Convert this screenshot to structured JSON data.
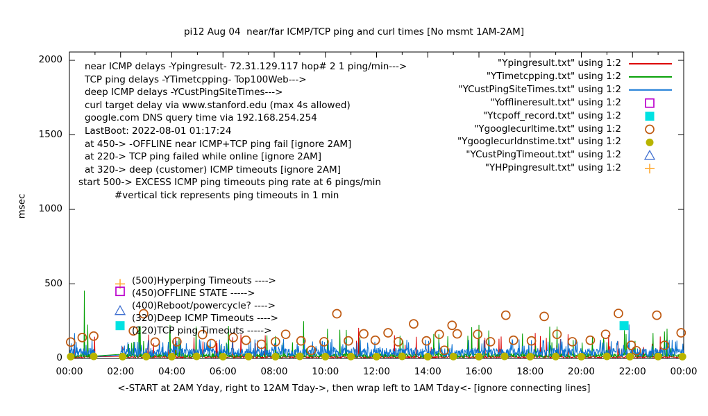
{
  "window": {
    "background": "#ffffff",
    "text_color": "#000000",
    "axis_color": "#000000"
  },
  "chart_data": {
    "type": "line",
    "title": "pi12 Aug 04  near/far ICMP/TCP ping and curl times [No msmt 1AM-2AM]",
    "ylabel": "msec",
    "xlabel": "<-START at 2AM Yday, right to 12AM Tday->, then wrap left to 1AM Tday<- [ignore connecting lines]",
    "ylim": [
      0,
      2000
    ],
    "xlim_hours": [
      0,
      24
    ],
    "ytick_values": [
      0,
      500,
      1000,
      1500,
      2000
    ],
    "xtick_labels": [
      "00:00",
      "02:00",
      "04:00",
      "06:00",
      "08:00",
      "10:00",
      "12:00",
      "14:00",
      "16:00",
      "18:00",
      "20:00",
      "22:00",
      "00:00"
    ],
    "grid": false,
    "legend_position": "top-right",
    "measurement_gap_hours": [
      1,
      2
    ],
    "seed": 42,
    "info_lines": [
      "near ICMP delays -Ypingresult- 72.31.129.117 hop# 2 1 ping/min--->",
      "TCP ping delays -YTimetcpping- Top100Web--->",
      "deep ICMP delays -YCustPingSiteTimes--->",
      "curl target delay via www.stanford.edu (max 4s allowed)",
      "google.com DNS query time via 192.168.254.254",
      "LastBoot: 2022-08-01 01:17:24",
      "at 450-> -OFFLINE near ICMP+TCP ping fail [ignore 2AM]",
      "at 220-> TCP ping failed while online [ignore 2AM]",
      "at 320-> deep (customer) ICMP timeouts [ignore 2AM]",
      "start 500-> EXCESS ICMP ping timeouts ping rate at 6 pings/min",
      "#vertical tick represents ping timeouts in 1 min"
    ],
    "plot_labels": [
      {
        "text": "(500)Hyperping Timeouts ---->",
        "marker": "plus",
        "marker_color": "#ffaa33",
        "value_ms": 500
      },
      {
        "text": "(450)OFFLINE STATE ----->",
        "marker": "square-open",
        "marker_color": "#bb00cc",
        "value_ms": 450
      },
      {
        "text": "(400)Reboot/powercycle? ---->",
        "marker": null,
        "marker_color": null,
        "value_ms": 400
      },
      {
        "text": "(320)Deep ICMP Timeouts ---->",
        "marker": "triangle-open",
        "marker_color": "#4070d0",
        "value_ms": 320
      },
      {
        "text": "(220)TCP ping Timeouts ----->",
        "marker": "square-filled",
        "marker_color": "#00e2e2",
        "value_ms": 220
      }
    ],
    "series": [
      {
        "file": "Ypingresult.txt",
        "legend_label": "\"Ypingresult.txt\" using 1:2",
        "color": "#dc0000",
        "style": "line",
        "sample": "line",
        "noise": {
          "base": 4,
          "jitter": 11,
          "spike_p": 0.035,
          "spike_min": 50,
          "spike_max": 180
        },
        "specials": [
          [
            3.1,
            160
          ],
          [
            11.3,
            205
          ],
          [
            18.4,
            150
          ]
        ]
      },
      {
        "file": "YTimetcpping.txt",
        "legend_label": "\"YTimetcpping.txt\" using 1:2",
        "color": "#009e00",
        "style": "line",
        "sample": "line",
        "noise": {
          "base": 6,
          "jitter": 28,
          "spike_p": 0.05,
          "spike_min": 60,
          "spike_max": 230
        },
        "specials": [
          [
            0.58,
            455
          ],
          [
            9.15,
            250
          ],
          [
            15.72,
            210
          ],
          [
            23.35,
            200
          ]
        ]
      },
      {
        "file": "YCustPingSiteTimes.txt",
        "legend_label": "\"YCustPingSiteTimes.txt\" using 1:2",
        "color": "#0d73d4",
        "style": "line",
        "sample": "line",
        "noise": {
          "base": 10,
          "jitter": 60,
          "spike_p": 0.12,
          "spike_min": 50,
          "spike_max": 130
        },
        "specials": [
          [
            0.2,
            170
          ],
          [
            21.87,
            228
          ]
        ]
      },
      {
        "file": "Yofflineresult.txt",
        "legend_label": "\"Yofflineresult.txt\" using 1:2",
        "color": "#bb00cc",
        "style": "points",
        "sample": "square-open",
        "points": []
      },
      {
        "file": "Ytcpoff_record.txt",
        "legend_label": "\"Ytcpoff_record.txt\" using 1:2",
        "color": "#00e2e2",
        "style": "points",
        "sample": "square-filled",
        "points": [
          [
            21.67,
            220
          ]
        ]
      },
      {
        "file": "Ygooglecurltime.txt",
        "legend_label": "\"Ygooglecurltime.txt\" using 1:2",
        "color": "#bf5a12",
        "style": "points",
        "sample": "circle-open",
        "points": [
          [
            0.05,
            110
          ],
          [
            0.5,
            140
          ],
          [
            0.95,
            150
          ],
          [
            2.5,
            185
          ],
          [
            2.9,
            300
          ],
          [
            3.35,
            110
          ],
          [
            4.2,
            112
          ],
          [
            5.2,
            160
          ],
          [
            5.55,
            100
          ],
          [
            6.4,
            140
          ],
          [
            6.9,
            122
          ],
          [
            7.5,
            95
          ],
          [
            8.05,
            112
          ],
          [
            8.45,
            162
          ],
          [
            9.05,
            118
          ],
          [
            9.45,
            55
          ],
          [
            9.95,
            112
          ],
          [
            10.45,
            300
          ],
          [
            10.9,
            118
          ],
          [
            11.5,
            165
          ],
          [
            11.95,
            122
          ],
          [
            12.45,
            172
          ],
          [
            12.85,
            112
          ],
          [
            13.45,
            232
          ],
          [
            13.95,
            118
          ],
          [
            14.45,
            162
          ],
          [
            14.65,
            55
          ],
          [
            14.95,
            222
          ],
          [
            15.15,
            165
          ],
          [
            15.95,
            162
          ],
          [
            16.45,
            112
          ],
          [
            17.05,
            290
          ],
          [
            17.35,
            122
          ],
          [
            18.05,
            118
          ],
          [
            18.55,
            282
          ],
          [
            19.05,
            162
          ],
          [
            19.65,
            112
          ],
          [
            20.35,
            122
          ],
          [
            20.95,
            162
          ],
          [
            21.45,
            302
          ],
          [
            21.95,
            88
          ],
          [
            22.15,
            52
          ],
          [
            22.95,
            290
          ],
          [
            23.25,
            88
          ],
          [
            23.9,
            172
          ]
        ]
      },
      {
        "file": "Ygooglecurldnstime.txt",
        "legend_label": "\"Ygooglecurldnstime.txt\" using 1:2",
        "color": "#b8b400",
        "style": "points",
        "sample": "circle-filled",
        "points": [
          [
            0.05,
            12
          ],
          [
            0.95,
            14
          ],
          [
            2.08,
            12
          ],
          [
            3.0,
            13
          ],
          [
            4.0,
            12
          ],
          [
            4.97,
            14
          ],
          [
            6.0,
            12
          ],
          [
            7.0,
            13
          ],
          [
            8.05,
            12
          ],
          [
            9.0,
            14
          ],
          [
            10.0,
            12
          ],
          [
            11.0,
            13
          ],
          [
            12.0,
            12
          ],
          [
            13.0,
            14
          ],
          [
            14.0,
            12
          ],
          [
            15.0,
            13
          ],
          [
            16.0,
            12
          ],
          [
            17.0,
            14
          ],
          [
            18.0,
            12
          ],
          [
            19.0,
            13
          ],
          [
            20.0,
            12
          ],
          [
            21.0,
            14
          ],
          [
            21.9,
            12
          ],
          [
            23.0,
            13
          ],
          [
            23.95,
            12
          ]
        ]
      },
      {
        "file": "YCustPingTimeout.txt",
        "legend_label": "\"YCustPingTimeout.txt\" using 1:2",
        "color": "#4070d0",
        "style": "points",
        "sample": "triangle-open",
        "points": []
      },
      {
        "file": "YHPpingresult.txt",
        "legend_label": "\"YHPpingresult.txt\" using 1:2",
        "color": "#ffaa33",
        "style": "points",
        "sample": "plus",
        "points": []
      }
    ]
  }
}
